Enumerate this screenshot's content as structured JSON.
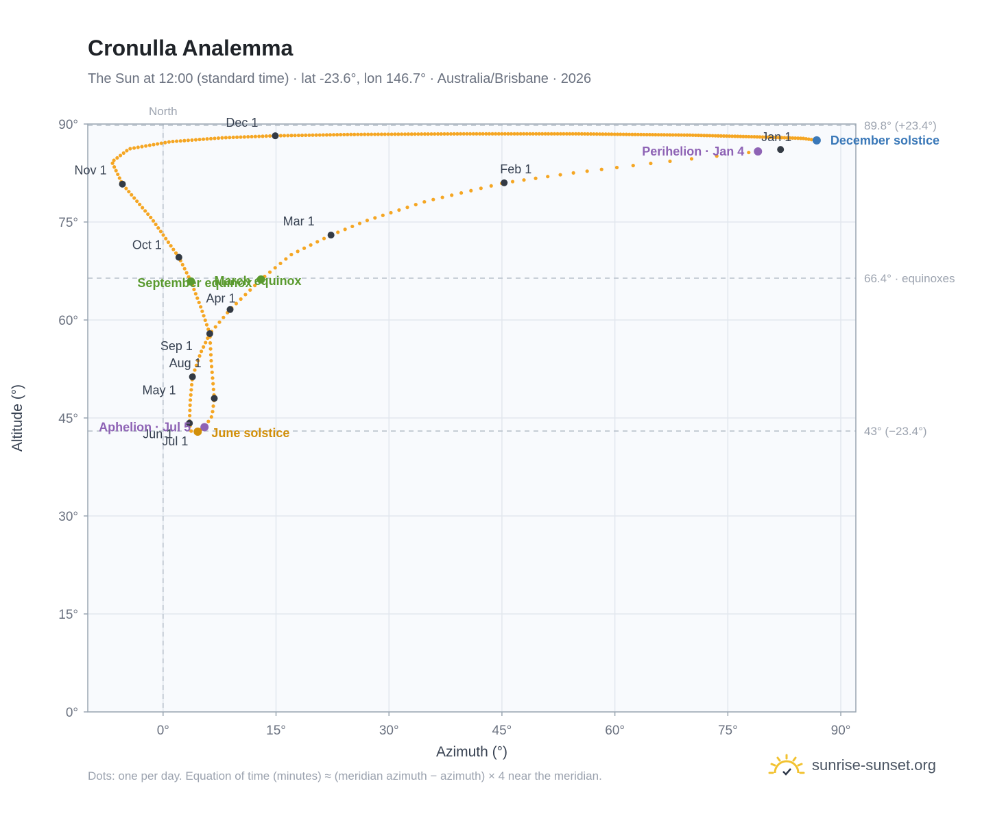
{
  "header": {
    "title": "Cronulla Analemma",
    "subtitle": "The Sun at 12:00 (standard time) · lat -23.6°, lon 146.7° · Australia/Brisbane · 2026"
  },
  "footer": {
    "note": "Dots: one per day. Equation of time (minutes) ≈ (meridian azimuth − azimuth) × 4 near the meridian.",
    "brand": "sunrise-sunset.org"
  },
  "colors": {
    "path": "#f5a623",
    "month_marker": "#333a44",
    "equinox": "#5a9a2f",
    "solstice_june": "#d18f0a",
    "solstice_december": "#3a78b8",
    "apsis": "#8e63b5",
    "plot_bg": "#f8fafd",
    "grid": "#e2e7ee",
    "reference": "#b9c2cc"
  },
  "chart_data": {
    "type": "scatter",
    "xlabel": "Azimuth (°)",
    "ylabel": "Altitude (°)",
    "xlim": [
      -10,
      92
    ],
    "ylim": [
      0,
      90
    ],
    "x_ticks": [
      0,
      15,
      30,
      45,
      60,
      75,
      90
    ],
    "x_tick_labels": [
      "0°",
      "15°",
      "30°",
      "45°",
      "60°",
      "75°",
      "90°"
    ],
    "y_ticks": [
      0,
      15,
      30,
      45,
      60,
      75,
      90
    ],
    "y_tick_labels": [
      "0°",
      "15°",
      "30°",
      "45°",
      "60°",
      "75°",
      "90°"
    ],
    "grid": true,
    "north_line": {
      "x": 0,
      "label": "North"
    },
    "reference_lines": [
      {
        "y": 89.8,
        "label": "89.8° (+23.4°)"
      },
      {
        "y": 66.4,
        "label": "66.4° · equinoxes"
      },
      {
        "y": 43,
        "label": "43° (−23.4°)"
      }
    ],
    "path_anchors": [
      {
        "x": 86.8,
        "y": 87.5
      },
      {
        "x": 82,
        "y": 86.1
      },
      {
        "x": 79,
        "y": 85.8
      },
      {
        "x": 65,
        "y": 84.0
      },
      {
        "x": 55,
        "y": 82.6
      },
      {
        "x": 45.3,
        "y": 81.0
      },
      {
        "x": 35,
        "y": 78.2
      },
      {
        "x": 27,
        "y": 75.2
      },
      {
        "x": 22.3,
        "y": 73.0
      },
      {
        "x": 17,
        "y": 70.0
      },
      {
        "x": 13,
        "y": 66.2
      },
      {
        "x": 8.9,
        "y": 61.6
      },
      {
        "x": 6.2,
        "y": 57.9
      },
      {
        "x": 6.4,
        "y": 53.5
      },
      {
        "x": 6.8,
        "y": 48.0
      },
      {
        "x": 6.5,
        "y": 45.3
      },
      {
        "x": 5.5,
        "y": 43.6
      },
      {
        "x": 4.6,
        "y": 42.9
      },
      {
        "x": 3.7,
        "y": 43.0
      },
      {
        "x": 3.5,
        "y": 44.2
      },
      {
        "x": 3.6,
        "y": 47.5
      },
      {
        "x": 3.9,
        "y": 51.3
      },
      {
        "x": 5.0,
        "y": 55.0
      },
      {
        "x": 6.2,
        "y": 57.9
      },
      {
        "x": 5.0,
        "y": 62.0
      },
      {
        "x": 3.7,
        "y": 65.9
      },
      {
        "x": 2.1,
        "y": 69.6
      },
      {
        "x": -1.5,
        "y": 75.5
      },
      {
        "x": -5.4,
        "y": 80.8
      },
      {
        "x": -6.8,
        "y": 84.2
      },
      {
        "x": -4.5,
        "y": 86.2
      },
      {
        "x": 1,
        "y": 87.3
      },
      {
        "x": 8,
        "y": 87.9
      },
      {
        "x": 14.9,
        "y": 88.2
      },
      {
        "x": 25,
        "y": 88.4
      },
      {
        "x": 40,
        "y": 88.5
      },
      {
        "x": 55,
        "y": 88.5
      },
      {
        "x": 70,
        "y": 88.3
      },
      {
        "x": 80,
        "y": 88.0
      },
      {
        "x": 85,
        "y": 87.8
      },
      {
        "x": 86.8,
        "y": 87.5
      }
    ],
    "month_markers": [
      {
        "label": "Jan 1",
        "x": 82,
        "y": 86.1
      },
      {
        "label": "Feb 1",
        "x": 45.3,
        "y": 81.0
      },
      {
        "label": "Mar 1",
        "x": 22.3,
        "y": 73.0
      },
      {
        "label": "Apr 1",
        "x": 8.9,
        "y": 61.6
      },
      {
        "label": "May 1",
        "x": 6.8,
        "y": 48.0
      },
      {
        "label": "Jun 1",
        "x": 3.5,
        "y": 44.2
      },
      {
        "label": "Jul 1",
        "x": 4.6,
        "y": 42.9
      },
      {
        "label": "Aug 1",
        "x": 3.9,
        "y": 51.3
      },
      {
        "label": "Sep 1",
        "x": 6.2,
        "y": 57.9
      },
      {
        "label": "Oct 1",
        "x": 2.1,
        "y": 69.6
      },
      {
        "label": "Nov 1",
        "x": -5.4,
        "y": 80.8
      },
      {
        "label": "Dec 1",
        "x": 14.9,
        "y": 88.2
      }
    ],
    "events": [
      {
        "label": "December solstice",
        "x": 86.8,
        "y": 87.5,
        "kind": "solstice_december"
      },
      {
        "label": "Perihelion · Jan 4",
        "x": 79,
        "y": 85.8,
        "kind": "apsis"
      },
      {
        "label": "March equinox",
        "x": 13,
        "y": 66.2,
        "kind": "equinox"
      },
      {
        "label": "September equinox",
        "x": 3.7,
        "y": 65.9,
        "kind": "equinox"
      },
      {
        "label": "June solstice",
        "x": 4.6,
        "y": 42.9,
        "kind": "solstice_june"
      },
      {
        "label": "Aphelion · Jul 5",
        "x": 5.5,
        "y": 43.6,
        "kind": "apsis"
      }
    ]
  }
}
